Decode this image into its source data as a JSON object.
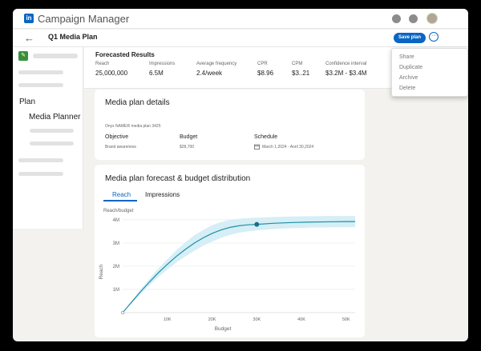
{
  "app": {
    "name": "Campaign Manager",
    "logo_text": "in"
  },
  "header": {
    "plan_title": "Q1 Media Plan",
    "save_label": "Save plan",
    "more_label": "···",
    "back_icon": "←"
  },
  "sidebar": {
    "plan_label": "Plan",
    "planner_label": "Media Planner"
  },
  "results": {
    "title": "Forecasted Results",
    "metrics": [
      {
        "label": "Reach",
        "value": "25,000,000"
      },
      {
        "label": "Impressions",
        "value": "6.5M"
      },
      {
        "label": "Average frequency",
        "value": "2.4/week"
      },
      {
        "label": "CPR",
        "value": "$8.96"
      },
      {
        "label": "CPM",
        "value": "$3..21"
      },
      {
        "label": "Confidence interval",
        "value": "$3.2M - $3.4M"
      }
    ]
  },
  "menu": {
    "items": [
      "Share",
      "Duplicate",
      "Archive",
      "Delete"
    ]
  },
  "details": {
    "title": "Media plan details",
    "plan_name": "Onyx NAMER media plan 3425",
    "objective_label": "Objective",
    "objective_value": "Brand awareness",
    "budget_label": "Budget",
    "budget_value": "$28,700",
    "schedule_label": "Schedule",
    "schedule_value": "March 1,2024 - Aoril 30,2024"
  },
  "forecast": {
    "title": "Media plan forecast & budget distribution",
    "tabs": [
      "Reach",
      "Impressions"
    ],
    "active_tab": "Reach",
    "chart_title": "Reach/budget"
  },
  "colors": {
    "accent": "#0a66c2",
    "line": "#1f8fa8",
    "band": "#d6eef5"
  },
  "chart_data": {
    "type": "line",
    "title": "Reach/budget",
    "xlabel": "Budget",
    "ylabel": "Reach",
    "x_ticks": [
      "10K",
      "20K",
      "30K",
      "40K",
      "50K"
    ],
    "x_tick_values": [
      10000,
      20000,
      30000,
      40000,
      50000
    ],
    "y_ticks": [
      "1M",
      "2M",
      "3M",
      "4M"
    ],
    "y_tick_values": [
      1000000,
      2000000,
      3000000,
      4000000
    ],
    "xlim": [
      0,
      52000
    ],
    "ylim": [
      0,
      4200000
    ],
    "grid": "horizontal",
    "series": [
      {
        "x": [
          0,
          2000,
          4000,
          6000,
          8000,
          10000,
          12000,
          14000,
          16000,
          18000,
          20000,
          22000,
          24000,
          26000,
          28000,
          30000,
          34000,
          38000,
          42000,
          46000,
          50000,
          52000
        ],
        "y": [
          0,
          450000,
          900000,
          1320000,
          1720000,
          2080000,
          2420000,
          2720000,
          2990000,
          3220000,
          3410000,
          3560000,
          3670000,
          3740000,
          3780000,
          3800000,
          3850000,
          3880000,
          3900000,
          3910000,
          3920000,
          3920000
        ],
        "band_upper": [
          0,
          500000,
          1000000,
          1460000,
          1900000,
          2300000,
          2680000,
          3020000,
          3320000,
          3560000,
          3760000,
          3900000,
          3990000,
          4040000,
          4070000,
          4090000,
          4120000,
          4140000,
          4150000,
          4160000,
          4160000,
          4160000
        ],
        "band_lower": [
          0,
          400000,
          800000,
          1180000,
          1540000,
          1860000,
          2160000,
          2420000,
          2660000,
          2880000,
          3060000,
          3220000,
          3350000,
          3440000,
          3500000,
          3540000,
          3600000,
          3640000,
          3660000,
          3670000,
          3680000,
          3680000
        ]
      }
    ],
    "highlight_point": {
      "x": 30000,
      "y": 3800000
    }
  }
}
